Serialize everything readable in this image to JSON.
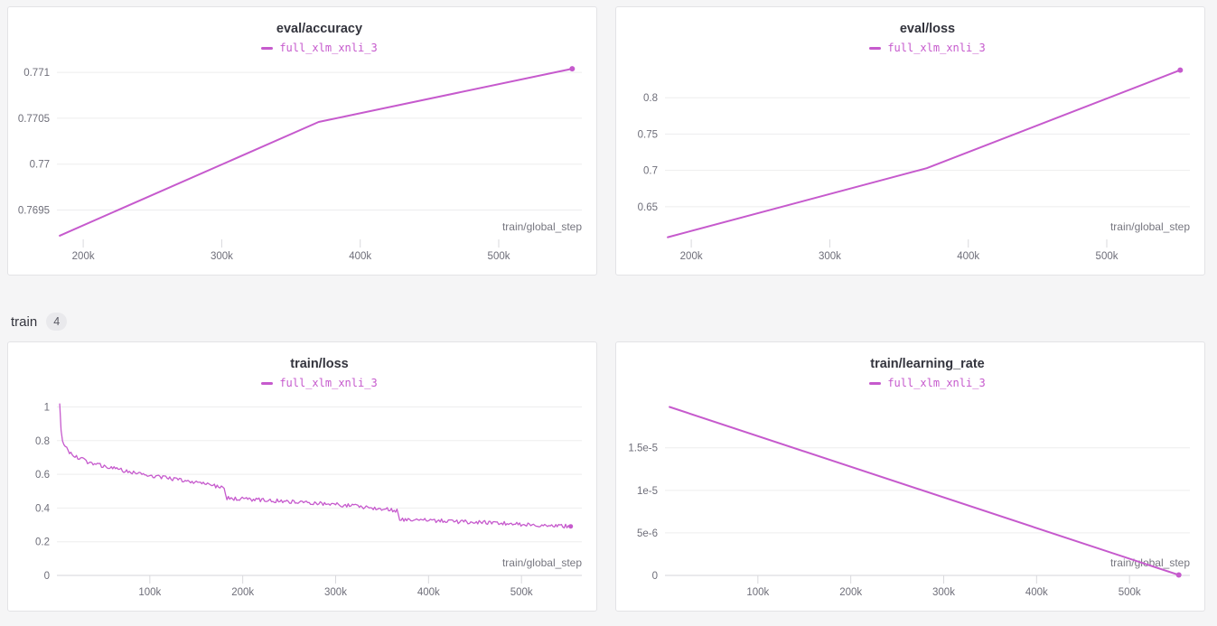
{
  "theme": {
    "page_bg": "#f5f5f6",
    "panel_bg": "#ffffff",
    "panel_border": "#e3e3e6",
    "grid_color": "#ededee",
    "axis_color": "#d6d6da",
    "tick_color": "#d9d9dd",
    "tick_label_color": "#6e6e79",
    "axis_label_color": "#76767f",
    "accent": "#c65acd"
  },
  "section_header": {
    "label": "train",
    "count": "4"
  },
  "chart_data": [
    {
      "type": "line",
      "title": "eval/accuracy",
      "xlabel": "train/global_step",
      "legend_position": "top-center",
      "grid": "horizontal",
      "xlim": [
        181000,
        560000
      ],
      "ylim": [
        0.76918,
        0.77108
      ],
      "yticks": [
        {
          "v": 0.771,
          "label": "0.771"
        },
        {
          "v": 0.7705,
          "label": "0.7705"
        },
        {
          "v": 0.77,
          "label": "0.77"
        },
        {
          "v": 0.7695,
          "label": "0.7695"
        }
      ],
      "xticks": [
        {
          "v": 200000,
          "label": "200k"
        },
        {
          "v": 300000,
          "label": "300k"
        },
        {
          "v": 400000,
          "label": "400k"
        },
        {
          "v": 500000,
          "label": "500k"
        }
      ],
      "series": [
        {
          "name": "full_xlm_xnli_3",
          "color": "#c65acd",
          "width": 2,
          "end_dot": 3,
          "points": [
            [
              183000,
              0.76922
            ],
            [
              370000,
              0.77046
            ],
            [
              553000,
              0.77104
            ]
          ]
        }
      ]
    },
    {
      "type": "line",
      "title": "eval/loss",
      "xlabel": "train/global_step",
      "legend_position": "top-center",
      "grid": "horizontal",
      "xlim": [
        181000,
        560000
      ],
      "ylim": [
        0.605,
        0.845
      ],
      "yticks": [
        {
          "v": 0.8,
          "label": "0.8"
        },
        {
          "v": 0.75,
          "label": "0.75"
        },
        {
          "v": 0.7,
          "label": "0.7"
        },
        {
          "v": 0.65,
          "label": "0.65"
        }
      ],
      "xticks": [
        {
          "v": 200000,
          "label": "200k"
        },
        {
          "v": 300000,
          "label": "300k"
        },
        {
          "v": 400000,
          "label": "400k"
        },
        {
          "v": 500000,
          "label": "500k"
        }
      ],
      "series": [
        {
          "name": "full_xlm_xnli_3",
          "color": "#c65acd",
          "width": 2,
          "end_dot": 3,
          "points": [
            [
              183000,
              0.608
            ],
            [
              370000,
              0.703
            ],
            [
              553000,
              0.838
            ]
          ]
        }
      ]
    },
    {
      "type": "line",
      "title": "train/loss",
      "xlabel": "train/global_step",
      "legend_position": "top-center",
      "grid": "horizontal",
      "xlim": [
        0,
        565000
      ],
      "ylim": [
        0,
        1.04
      ],
      "baseline": 0,
      "yticks": [
        {
          "v": 1,
          "label": "1"
        },
        {
          "v": 0.8,
          "label": "0.8"
        },
        {
          "v": 0.6,
          "label": "0.6"
        },
        {
          "v": 0.4,
          "label": "0.4"
        },
        {
          "v": 0.2,
          "label": "0.2"
        },
        {
          "v": 0,
          "label": "0",
          "axis": true
        }
      ],
      "xticks": [
        {
          "v": 100000,
          "label": "100k"
        },
        {
          "v": 200000,
          "label": "200k"
        },
        {
          "v": 300000,
          "label": "300k"
        },
        {
          "v": 400000,
          "label": "400k"
        },
        {
          "v": 500000,
          "label": "500k"
        }
      ],
      "series": [
        {
          "name": "full_xlm_xnli_3",
          "color": "#c65acd",
          "width": 1.3,
          "end_dot": 2.5,
          "noise": {
            "amplitude": 0.012,
            "step": 1500,
            "skip_first": 4
          },
          "points": [
            [
              3000,
              1.02
            ],
            [
              4000,
              0.9
            ],
            [
              5000,
              0.82
            ],
            [
              7000,
              0.78
            ],
            [
              9000,
              0.76
            ],
            [
              12000,
              0.74
            ],
            [
              16000,
              0.72
            ],
            [
              20000,
              0.705
            ],
            [
              26000,
              0.69
            ],
            [
              33000,
              0.675
            ],
            [
              40000,
              0.663
            ],
            [
              48000,
              0.652
            ],
            [
              56000,
              0.642
            ],
            [
              64000,
              0.632
            ],
            [
              72000,
              0.622
            ],
            [
              80000,
              0.613
            ],
            [
              90000,
              0.603
            ],
            [
              100000,
              0.594
            ],
            [
              110000,
              0.585
            ],
            [
              122000,
              0.575
            ],
            [
              134000,
              0.565
            ],
            [
              146000,
              0.555
            ],
            [
              158000,
              0.545
            ],
            [
              168000,
              0.535
            ],
            [
              176000,
              0.525
            ],
            [
              180000,
              0.512
            ],
            [
              182000,
              0.46
            ],
            [
              190000,
              0.455
            ],
            [
              205000,
              0.452
            ],
            [
              220000,
              0.448
            ],
            [
              235000,
              0.444
            ],
            [
              250000,
              0.44
            ],
            [
              265000,
              0.435
            ],
            [
              280000,
              0.43
            ],
            [
              295000,
              0.424
            ],
            [
              310000,
              0.417
            ],
            [
              325000,
              0.41
            ],
            [
              340000,
              0.402
            ],
            [
              355000,
              0.394
            ],
            [
              366000,
              0.386
            ],
            [
              369000,
              0.332
            ],
            [
              380000,
              0.33
            ],
            [
              395000,
              0.327
            ],
            [
              410000,
              0.324
            ],
            [
              430000,
              0.32
            ],
            [
              450000,
              0.316
            ],
            [
              470000,
              0.312
            ],
            [
              490000,
              0.306
            ],
            [
              510000,
              0.301
            ],
            [
              530000,
              0.296
            ],
            [
              545000,
              0.293
            ],
            [
              553000,
              0.291
            ]
          ]
        }
      ]
    },
    {
      "type": "line",
      "title": "train/learning_rate",
      "xlabel": "train/global_step",
      "legend_position": "top-center",
      "grid": "horizontal",
      "xlim": [
        0,
        565000
      ],
      "ylim": [
        0,
        2.06e-05
      ],
      "baseline": 0,
      "yticks": [
        {
          "v": 1.5e-05,
          "label": "1.5e-5"
        },
        {
          "v": 1e-05,
          "label": "1e-5"
        },
        {
          "v": 5e-06,
          "label": "5e-6"
        },
        {
          "v": 0,
          "label": "0",
          "axis": true
        }
      ],
      "xticks": [
        {
          "v": 100000,
          "label": "100k"
        },
        {
          "v": 200000,
          "label": "200k"
        },
        {
          "v": 300000,
          "label": "300k"
        },
        {
          "v": 400000,
          "label": "400k"
        },
        {
          "v": 500000,
          "label": "500k"
        }
      ],
      "series": [
        {
          "name": "full_xlm_xnli_3",
          "color": "#c65acd",
          "width": 2,
          "end_dot": 3,
          "points": [
            [
              5000,
              1.98e-05
            ],
            [
              553000,
              5e-08
            ]
          ]
        }
      ]
    }
  ]
}
